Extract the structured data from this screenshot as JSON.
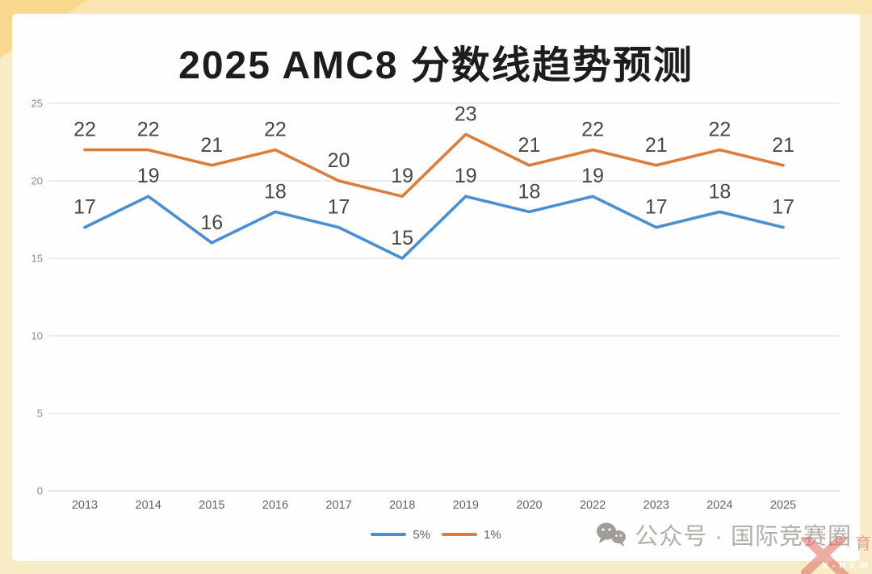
{
  "chart_data": {
    "type": "line",
    "title": "2025 AMC8 分数线趋势预测",
    "categories": [
      "2013",
      "2014",
      "2015",
      "2016",
      "2017",
      "2018",
      "2019",
      "2020",
      "2022",
      "2023",
      "2024",
      "2025"
    ],
    "series": [
      {
        "name": "5%",
        "color": "#4a8ed3",
        "values": [
          17,
          19,
          16,
          18,
          17,
          15,
          19,
          18,
          19,
          17,
          18,
          17
        ]
      },
      {
        "name": "1%",
        "color": "#dd7d3c",
        "values": [
          22,
          22,
          21,
          22,
          20,
          19,
          23,
          21,
          22,
          21,
          22,
          21
        ]
      }
    ],
    "xlabel": "",
    "ylabel": "",
    "ylim": [
      0,
      25
    ],
    "yticks": [
      0,
      5,
      10,
      15,
      20,
      25
    ],
    "grid": true,
    "legend_position": "bottom",
    "data_labels": true
  },
  "legend": {
    "items": [
      {
        "label": "5%",
        "color": "#4a8ed3"
      },
      {
        "label": "1%",
        "color": "#dd7d3c"
      }
    ]
  },
  "watermark": {
    "icon": "wechat-icon",
    "text": "公众号 · 国际竞赛圈"
  },
  "corner_logo": {
    "cn_text": "育",
    "en_text": "X-NEW"
  },
  "colors": {
    "background_cream": "#f8ecc6",
    "top_band": "#fae4af",
    "corner_triangle": "#f8d88e",
    "card": "#fefefe",
    "gridline": "#e5e3df",
    "axis_text": "#63635e",
    "data_label": "#474743",
    "series_blue": "#4a8ed3",
    "series_orange": "#dd7d3c",
    "watermark_gray": "#a5a19a",
    "logo_red": "#dd6b5f"
  }
}
